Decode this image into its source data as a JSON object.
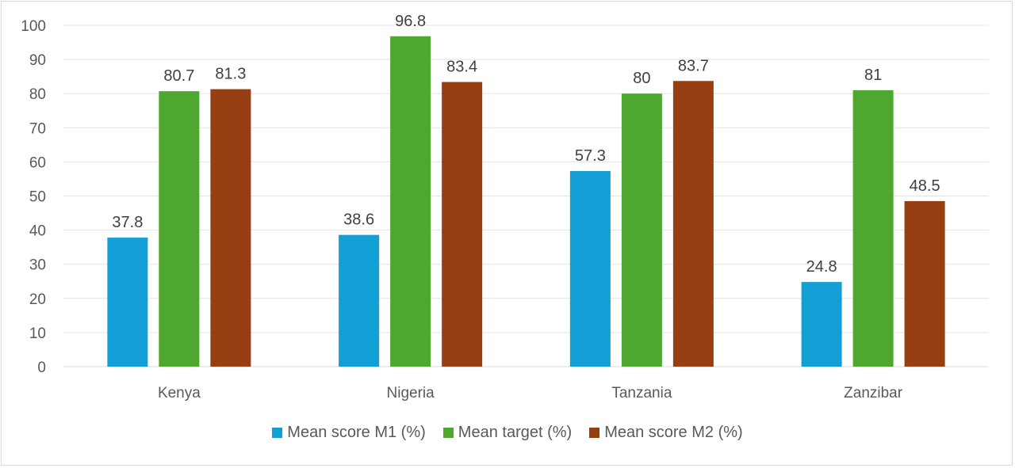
{
  "chart_data": {
    "type": "bar",
    "categories": [
      "Kenya",
      "Nigeria",
      "Tanzania",
      "Zanzibar"
    ],
    "series": [
      {
        "name": "Mean score M1 (%)",
        "values": [
          37.8,
          38.6,
          57.3,
          24.8
        ],
        "color": "#129fd6"
      },
      {
        "name": "Mean target (%)",
        "values": [
          80.7,
          96.8,
          80,
          81
        ],
        "color": "#4ea72e"
      },
      {
        "name": "Mean score M2 (%)",
        "values": [
          81.3,
          83.4,
          83.7,
          48.5
        ],
        "color": "#973f13"
      }
    ],
    "title": "",
    "xlabel": "",
    "ylabel": "",
    "ylim": [
      0,
      100
    ],
    "yticks": [
      0,
      10,
      20,
      30,
      40,
      50,
      60,
      70,
      80,
      90,
      100
    ],
    "grid": true,
    "legend_position": "bottom",
    "data_labels": true
  }
}
